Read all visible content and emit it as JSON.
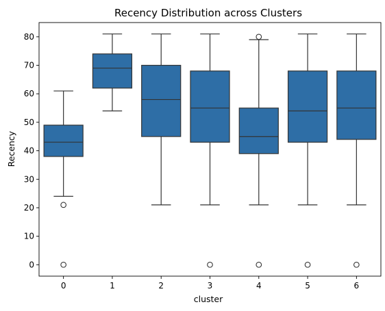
{
  "chart_data": {
    "type": "box",
    "title": "Recency Distribution across Clusters",
    "xlabel": "cluster",
    "ylabel": "Recency",
    "categories": [
      "0",
      "1",
      "2",
      "3",
      "4",
      "5",
      "6"
    ],
    "ylim": [
      -4,
      85
    ],
    "yticks": [
      0,
      10,
      20,
      30,
      40,
      50,
      60,
      70,
      80
    ],
    "grid": false,
    "legend": "none",
    "color": "#2e6ea6",
    "edge_color": "#333333",
    "boxes": [
      {
        "category": "0",
        "whisker_low": 24,
        "q1": 38,
        "median": 43,
        "q3": 49,
        "whisker_high": 61,
        "outliers": [
          0,
          21
        ]
      },
      {
        "category": "1",
        "whisker_low": 54,
        "q1": 62,
        "median": 69,
        "q3": 74,
        "whisker_high": 81,
        "outliers": []
      },
      {
        "category": "2",
        "whisker_low": 21,
        "q1": 45,
        "median": 58,
        "q3": 70,
        "whisker_high": 81,
        "outliers": []
      },
      {
        "category": "3",
        "whisker_low": 21,
        "q1": 43,
        "median": 55,
        "q3": 68,
        "whisker_high": 81,
        "outliers": [
          0
        ]
      },
      {
        "category": "4",
        "whisker_low": 21,
        "q1": 39,
        "median": 45,
        "q3": 55,
        "whisker_high": 79,
        "outliers": [
          0,
          80
        ]
      },
      {
        "category": "5",
        "whisker_low": 21,
        "q1": 43,
        "median": 54,
        "q3": 68,
        "whisker_high": 81,
        "outliers": [
          0
        ]
      },
      {
        "category": "6",
        "whisker_low": 21,
        "q1": 44,
        "median": 55,
        "q3": 68,
        "whisker_high": 81,
        "outliers": [
          0
        ]
      }
    ]
  }
}
